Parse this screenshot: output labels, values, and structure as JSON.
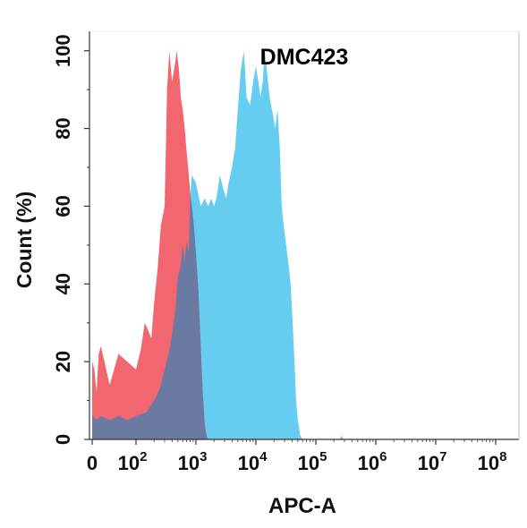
{
  "chart_data": {
    "type": "area",
    "title": "DMC423",
    "xlabel": "APC-A",
    "ylabel": "Count  (%)",
    "x_scale": "biexponential",
    "xlim": [
      0,
      100000000
    ],
    "ylim": [
      0,
      105
    ],
    "x_ticks": [
      {
        "base": "0",
        "exp": ""
      },
      {
        "base": "10",
        "exp": "2"
      },
      {
        "base": "10",
        "exp": "3"
      },
      {
        "base": "10",
        "exp": "4"
      },
      {
        "base": "10",
        "exp": "5"
      },
      {
        "base": "10",
        "exp": "6"
      },
      {
        "base": "10",
        "exp": "7"
      },
      {
        "base": "10",
        "exp": "8"
      }
    ],
    "y_ticks": [
      "0",
      "20",
      "40",
      "60",
      "80",
      "100"
    ],
    "colors": {
      "control": "#f26670",
      "sample": "#66ccf0",
      "overlap": "#6b7aa3",
      "axis": "#333333"
    },
    "series": [
      {
        "key": "control",
        "fill": "#f26670",
        "points": [
          [
            0,
            20
          ],
          [
            5,
            18
          ],
          [
            10,
            12
          ],
          [
            15,
            22
          ],
          [
            20,
            24
          ],
          [
            40,
            14
          ],
          [
            60,
            22
          ],
          [
            80,
            20
          ],
          [
            100,
            18
          ],
          [
            120,
            23
          ],
          [
            140,
            30
          ],
          [
            160,
            28
          ],
          [
            180,
            26
          ],
          [
            200,
            35
          ],
          [
            230,
            44
          ],
          [
            260,
            55
          ],
          [
            300,
            60
          ],
          [
            330,
            90
          ],
          [
            360,
            100
          ],
          [
            400,
            92
          ],
          [
            440,
            96
          ],
          [
            480,
            100
          ],
          [
            520,
            95
          ],
          [
            560,
            88
          ],
          [
            600,
            85
          ],
          [
            650,
            80
          ],
          [
            700,
            74
          ],
          [
            760,
            68
          ],
          [
            820,
            62
          ],
          [
            900,
            57
          ],
          [
            1000,
            48
          ],
          [
            1100,
            38
          ],
          [
            1200,
            24
          ],
          [
            1300,
            12
          ],
          [
            1400,
            4
          ],
          [
            1500,
            1
          ],
          [
            1600,
            0
          ]
        ]
      },
      {
        "key": "sample",
        "fill": "#66ccf0",
        "points": [
          [
            0,
            6
          ],
          [
            10,
            5
          ],
          [
            20,
            6
          ],
          [
            40,
            5
          ],
          [
            60,
            6
          ],
          [
            80,
            5
          ],
          [
            100,
            6
          ],
          [
            150,
            7
          ],
          [
            200,
            10
          ],
          [
            250,
            13
          ],
          [
            300,
            18
          ],
          [
            350,
            22
          ],
          [
            400,
            27
          ],
          [
            450,
            33
          ],
          [
            500,
            42
          ],
          [
            550,
            44
          ],
          [
            600,
            50
          ],
          [
            650,
            46
          ],
          [
            700,
            51
          ],
          [
            760,
            48
          ],
          [
            800,
            62
          ],
          [
            850,
            68
          ],
          [
            1000,
            66
          ],
          [
            1200,
            60
          ],
          [
            1400,
            62
          ],
          [
            1600,
            60
          ],
          [
            1800,
            62
          ],
          [
            2000,
            60
          ],
          [
            2200,
            62
          ],
          [
            2500,
            68
          ],
          [
            2800,
            65
          ],
          [
            3200,
            62
          ],
          [
            3500,
            66
          ],
          [
            4000,
            70
          ],
          [
            4500,
            75
          ],
          [
            5000,
            85
          ],
          [
            5600,
            95
          ],
          [
            6300,
            100
          ],
          [
            7000,
            88
          ],
          [
            8000,
            86
          ],
          [
            9000,
            92
          ],
          [
            10000,
            96
          ],
          [
            11000,
            92
          ],
          [
            12000,
            88
          ],
          [
            13000,
            92
          ],
          [
            14000,
            100
          ],
          [
            15000,
            96
          ],
          [
            17000,
            88
          ],
          [
            19000,
            84
          ],
          [
            21000,
            80
          ],
          [
            23000,
            85
          ],
          [
            25000,
            75
          ],
          [
            27000,
            60
          ],
          [
            29000,
            55
          ],
          [
            32000,
            50
          ],
          [
            35000,
            45
          ],
          [
            38000,
            40
          ],
          [
            41000,
            30
          ],
          [
            44000,
            20
          ],
          [
            47000,
            10
          ],
          [
            50000,
            5
          ],
          [
            55000,
            1
          ],
          [
            60000,
            0
          ],
          [
            250000,
            0
          ],
          [
            270000,
            1
          ],
          [
            290000,
            0
          ]
        ]
      }
    ]
  }
}
